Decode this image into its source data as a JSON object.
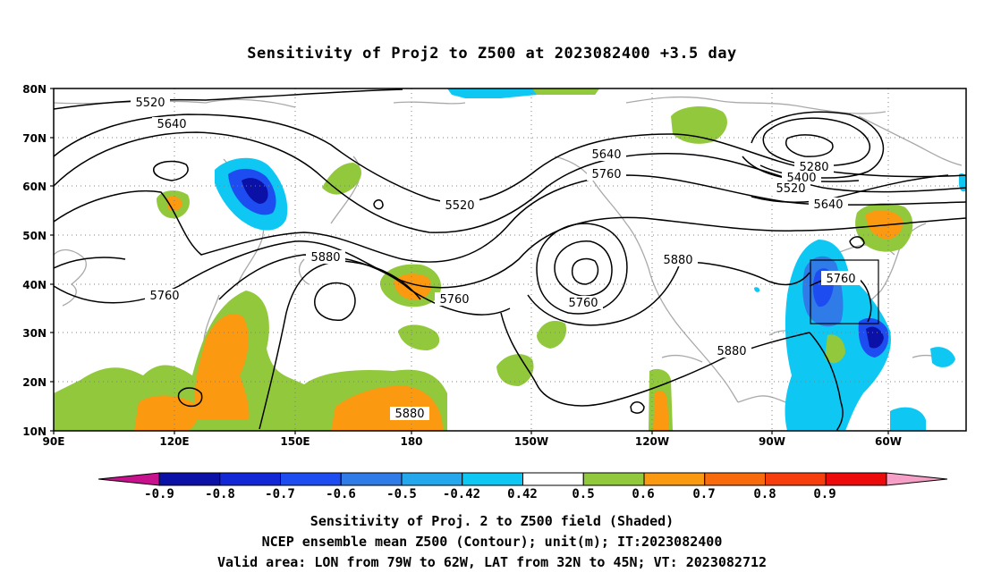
{
  "title": "Sensitivity of Proj2 to Z500 at 2023082400 +3.5 day",
  "axes": {
    "lat_labels": [
      "80N",
      "70N",
      "60N",
      "50N",
      "40N",
      "30N",
      "20N",
      "10N"
    ],
    "lon_labels": [
      "90E",
      "120E",
      "150E",
      "180",
      "150W",
      "120W",
      "90W",
      "60W"
    ]
  },
  "colorbar": {
    "labels": [
      "-0.9",
      "-0.8",
      "-0.7",
      "-0.6",
      "-0.5",
      "-0.42",
      "0.42",
      "0.5",
      "0.6",
      "0.7",
      "0.8",
      "0.9"
    ],
    "colors": [
      "#c7118d",
      "#0b10a6",
      "#1227d6",
      "#1d4cf0",
      "#2f7be8",
      "#25a7ee",
      "#0ec8f3",
      "#ffffff",
      "#92c83c",
      "#fb9910",
      "#f86a0b",
      "#f63d0b",
      "#ec0a0a",
      "#f6a0c8"
    ]
  },
  "contour_labels": [
    "5520",
    "5640",
    "5640",
    "5760",
    "5520",
    "5280",
    "5400",
    "5520",
    "5640",
    "5880",
    "5760",
    "5760",
    "5880",
    "5760",
    "5880",
    "5880",
    "5760"
  ],
  "captions": {
    "line1": "Sensitivity of Proj. 2 to Z500 field (Shaded)",
    "line2": "NCEP ensemble mean Z500 (Contour); unit(m); IT:2023082400",
    "line3": "Valid area: LON from 79W to 62W, LAT from 32N to 45N; VT: 2023082712"
  }
}
